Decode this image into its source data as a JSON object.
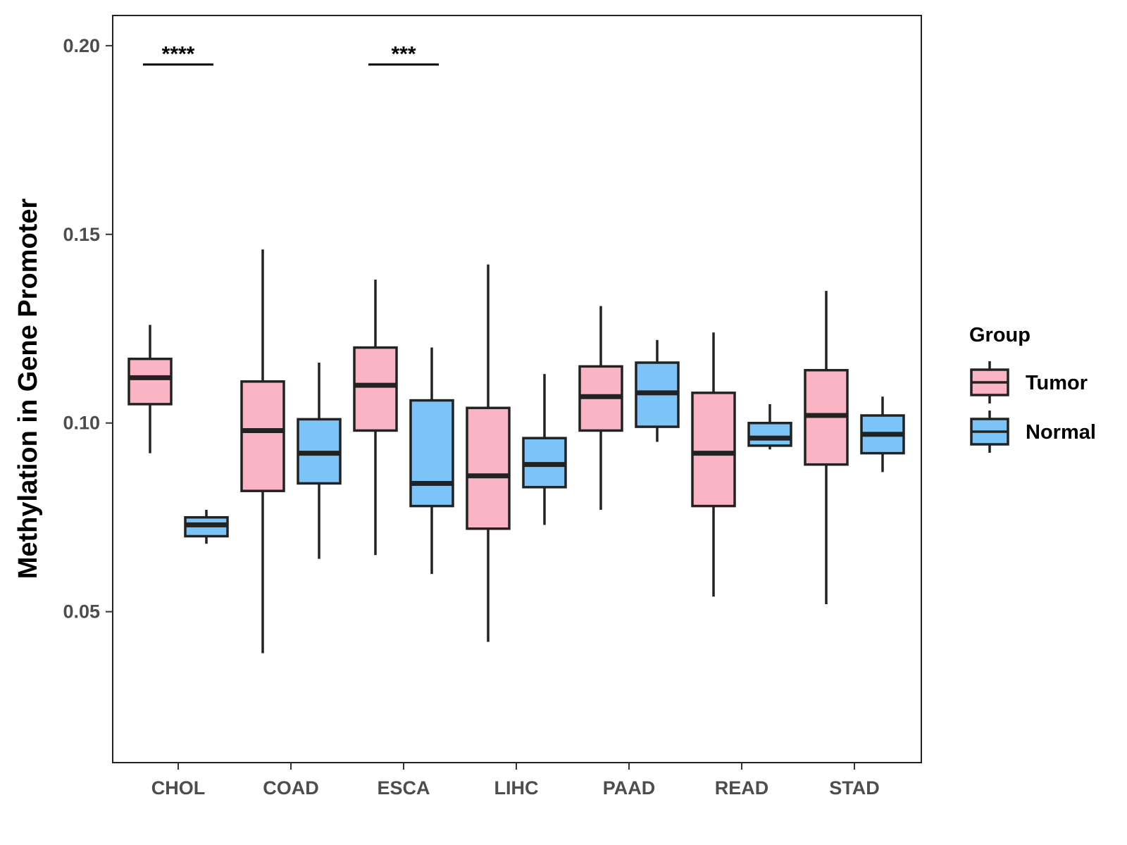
{
  "chart_data": {
    "type": "boxplot",
    "title": "",
    "xlabel": "",
    "ylabel": "Methylation in Gene Promoter",
    "ylim": [
      0.01,
      0.208
    ],
    "y_ticks": [
      0.05,
      0.1,
      0.15,
      0.2
    ],
    "y_tick_labels": [
      "0.05",
      "0.10",
      "0.15",
      "0.20"
    ],
    "categories": [
      "CHOL",
      "COAD",
      "ESCA",
      "LIHC",
      "PAAD",
      "READ",
      "STAD"
    ],
    "legend": {
      "title": "Group",
      "position": "right",
      "entries": [
        {
          "name": "Tumor",
          "color": "#fbb4c4"
        },
        {
          "name": "Normal",
          "color": "#7cc4f8"
        }
      ]
    },
    "series": [
      {
        "name": "Tumor",
        "color": "#fbb4c4",
        "boxes": [
          {
            "min": 0.092,
            "q1": 0.105,
            "median": 0.112,
            "q3": 0.117,
            "max": 0.126
          },
          {
            "min": 0.039,
            "q1": 0.082,
            "median": 0.098,
            "q3": 0.111,
            "max": 0.146
          },
          {
            "min": 0.065,
            "q1": 0.098,
            "median": 0.11,
            "q3": 0.12,
            "max": 0.138
          },
          {
            "min": 0.042,
            "q1": 0.072,
            "median": 0.086,
            "q3": 0.104,
            "max": 0.142
          },
          {
            "min": 0.077,
            "q1": 0.098,
            "median": 0.107,
            "q3": 0.115,
            "max": 0.131
          },
          {
            "min": 0.054,
            "q1": 0.078,
            "median": 0.092,
            "q3": 0.108,
            "max": 0.124
          },
          {
            "min": 0.052,
            "q1": 0.089,
            "median": 0.102,
            "q3": 0.114,
            "max": 0.135
          }
        ]
      },
      {
        "name": "Normal",
        "color": "#7cc4f8",
        "boxes": [
          {
            "min": 0.068,
            "q1": 0.07,
            "median": 0.073,
            "q3": 0.075,
            "max": 0.077
          },
          {
            "min": 0.064,
            "q1": 0.084,
            "median": 0.092,
            "q3": 0.101,
            "max": 0.116
          },
          {
            "min": 0.06,
            "q1": 0.078,
            "median": 0.084,
            "q3": 0.106,
            "max": 0.12
          },
          {
            "min": 0.073,
            "q1": 0.083,
            "median": 0.089,
            "q3": 0.096,
            "max": 0.113
          },
          {
            "min": 0.095,
            "q1": 0.099,
            "median": 0.108,
            "q3": 0.116,
            "max": 0.122
          },
          {
            "min": 0.093,
            "q1": 0.094,
            "median": 0.096,
            "q3": 0.1,
            "max": 0.105
          },
          {
            "min": 0.087,
            "q1": 0.092,
            "median": 0.097,
            "q3": 0.102,
            "max": 0.107
          }
        ]
      }
    ],
    "annotations": [
      {
        "category": "CHOL",
        "label": "****",
        "y": 0.195
      },
      {
        "category": "ESCA",
        "label": "***",
        "y": 0.195
      }
    ]
  }
}
